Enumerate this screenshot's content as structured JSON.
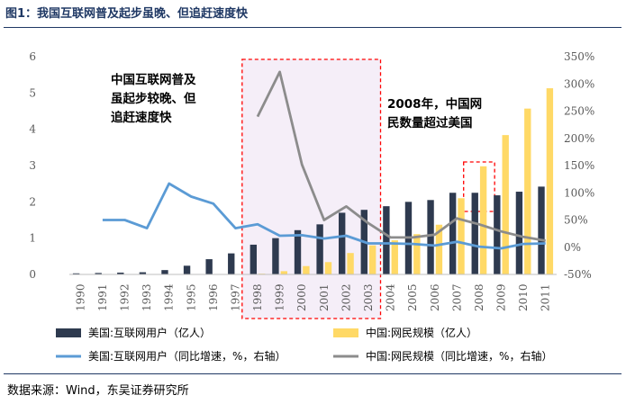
{
  "figure": {
    "title": "图1：我国互联网普及起步虽晚、但追赶速度快",
    "source": "数据来源：Wind，东吴证券研究所"
  },
  "chart_data": {
    "type": "bar",
    "categories": [
      "1990",
      "1991",
      "1992",
      "1993",
      "1994",
      "1995",
      "1996",
      "1997",
      "1998",
      "1999",
      "2000",
      "2001",
      "2002",
      "2003",
      "2004",
      "2005",
      "2006",
      "2007",
      "2008",
      "2009",
      "2010",
      "2011"
    ],
    "left_axis": {
      "ylim": [
        0,
        6
      ],
      "ticks": [
        "0",
        "1",
        "2",
        "3",
        "4",
        "5",
        "6"
      ]
    },
    "right_axis": {
      "ylim": [
        -50,
        350
      ],
      "ticks": [
        "-50%",
        "0%",
        "50%",
        "100%",
        "150%",
        "200%",
        "250%",
        "300%",
        "350%"
      ]
    },
    "series": [
      {
        "name": "美国:互联网用户（亿人）",
        "type": "bar",
        "axis": "left",
        "color": "#2e3a4f",
        "values": [
          0.03,
          0.04,
          0.05,
          0.06,
          0.12,
          0.24,
          0.42,
          0.58,
          0.82,
          1.0,
          1.22,
          1.38,
          1.7,
          1.78,
          1.88,
          2.0,
          2.05,
          2.25,
          2.25,
          2.18,
          2.28,
          2.42
        ]
      },
      {
        "name": "中国:网民规模（亿人）",
        "type": "bar",
        "axis": "left",
        "color": "#ffd966",
        "values": [
          0,
          0,
          0,
          0,
          0,
          0,
          0,
          0,
          0.02,
          0.09,
          0.23,
          0.34,
          0.59,
          0.8,
          0.94,
          1.11,
          1.37,
          2.1,
          2.98,
          3.84,
          4.57,
          5.13
        ]
      },
      {
        "name": "美国:互联网用户（同比增速，%，右轴）",
        "type": "line",
        "axis": "right",
        "color": "#5b9bd5",
        "values": [
          null,
          50,
          50,
          35,
          117,
          93,
          80,
          35,
          42,
          21,
          22,
          16,
          21,
          7,
          7,
          6,
          3,
          10,
          1,
          -2,
          6,
          7
        ]
      },
      {
        "name": "中国:网民规模（同比增速，%，右轴）",
        "type": "line",
        "axis": "right",
        "color": "#8c8c8c",
        "values": [
          null,
          null,
          null,
          null,
          null,
          null,
          null,
          null,
          null,
          null,
          null,
          null,
          null,
          null,
          null,
          null,
          null,
          null,
          null,
          null,
          null,
          null
        ],
        "points": {
          "1998": 240,
          "1999": 322,
          "2000": 152,
          "2001": 50,
          "2002": 75,
          "2003": 44,
          "2004": 18,
          "2005": 18,
          "2006": 23,
          "2007": 53,
          "2008": 42,
          "2009": 29,
          "2010": 19,
          "2011": 12
        }
      }
    ],
    "annotations": [
      {
        "text_lines": [
          "中国互联网普及",
          "虽起步较晚、但",
          "追赶速度快"
        ]
      },
      {
        "text_lines": [
          "2008年，中国网",
          "民数量超过美国"
        ]
      }
    ],
    "highlight_boxes": [
      {
        "from": "1998",
        "to": "2003",
        "fill": "#f5eef8",
        "stroke": "#ff0000"
      },
      {
        "from": "2007.5",
        "to": "2008.5",
        "fill": "none",
        "stroke": "#ff0000"
      }
    ],
    "grid": false,
    "legend_position": "bottom"
  }
}
